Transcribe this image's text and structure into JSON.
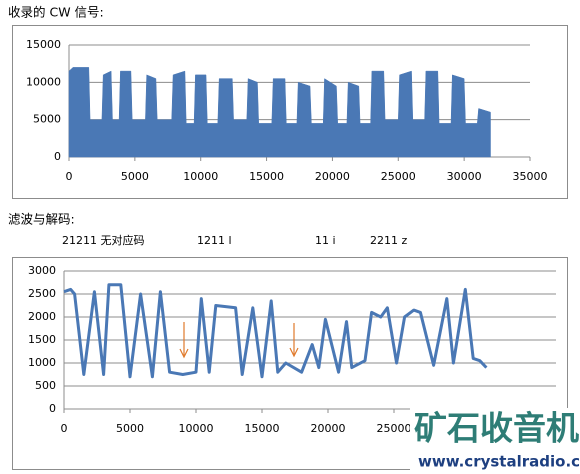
{
  "headings": [
    "收录的 CW 信号:",
    "滤波与解码:"
  ],
  "decode_labels": [
    "21211  无对应码",
    "1211 l",
    "11 i",
    "2211 z"
  ],
  "watermark": {
    "title": "矿石收音机",
    "url": "www.crystalradio.cn"
  },
  "chart_data": [
    {
      "type": "area",
      "color": "#4a78b5",
      "x": [
        0,
        300,
        1500,
        1600,
        2500,
        2600,
        3200,
        3300,
        3800,
        3900,
        4700,
        4800,
        5800,
        5900,
        6600,
        6700,
        7800,
        7900,
        8800,
        8900,
        9500,
        9600,
        10400,
        10500,
        11300,
        11400,
        12400,
        12500,
        13500,
        13600,
        14300,
        14400,
        15400,
        15500,
        16400,
        16500,
        17300,
        17400,
        18300,
        18400,
        19300,
        19400,
        20300,
        20400,
        21100,
        21200,
        22000,
        22100,
        22900,
        23000,
        23900,
        24000,
        25000,
        25100,
        26000,
        26100,
        27000,
        27100,
        28000,
        28100,
        29000,
        29100,
        30000,
        30100,
        31000,
        31100,
        32000
      ],
      "values": [
        11500,
        12000,
        12000,
        5000,
        5000,
        11000,
        11500,
        5000,
        5000,
        11500,
        11500,
        5000,
        5000,
        11000,
        10500,
        5000,
        5000,
        11000,
        11500,
        4500,
        4500,
        11000,
        11000,
        4500,
        4500,
        10500,
        10500,
        5000,
        5000,
        10500,
        10000,
        4500,
        4500,
        10500,
        10500,
        4500,
        4500,
        10000,
        9500,
        4500,
        4500,
        10500,
        9500,
        4500,
        4500,
        10000,
        9500,
        4500,
        4500,
        11500,
        11500,
        5000,
        5000,
        11000,
        11500,
        5000,
        5000,
        11500,
        11500,
        4500,
        4500,
        11000,
        10500,
        4500,
        4500,
        6500,
        6000
      ],
      "xlim": [
        0,
        35000
      ],
      "xticks": [
        0,
        5000,
        10000,
        15000,
        20000,
        25000,
        30000,
        35000
      ],
      "ylim": [
        0,
        15000
      ],
      "yticks": [
        0,
        5000,
        10000,
        15000
      ],
      "grid": true
    },
    {
      "type": "line",
      "color": "#4a78b5",
      "x": [
        0,
        500,
        800,
        1500,
        2300,
        3000,
        3400,
        4300,
        5000,
        5800,
        6700,
        7300,
        8000,
        9000,
        10000,
        10400,
        11000,
        11500,
        13000,
        13500,
        14300,
        15000,
        15700,
        16200,
        16800,
        18000,
        18800,
        19300,
        19800,
        20800,
        21400,
        21800,
        22800,
        23300,
        24000,
        24500,
        25200,
        25800,
        26500,
        27000,
        28000,
        29000,
        29500,
        30400,
        31000,
        31500,
        32000
      ],
      "values": [
        2550,
        2600,
        2500,
        750,
        2550,
        750,
        2700,
        2700,
        700,
        2500,
        700,
        2550,
        800,
        750,
        800,
        2400,
        800,
        2250,
        2200,
        750,
        2200,
        700,
        2350,
        800,
        1000,
        800,
        1400,
        900,
        1950,
        800,
        1900,
        900,
        1050,
        2100,
        2000,
        2200,
        1000,
        2000,
        2150,
        2100,
        950,
        2400,
        1000,
        2600,
        1100,
        1050,
        900
      ],
      "xlim": [
        0,
        35000
      ],
      "xticks": [
        0,
        5000,
        10000,
        15000,
        20000,
        25000
      ],
      "ylim": [
        0,
        3000
      ],
      "yticks": [
        0,
        500,
        1000,
        1500,
        2000,
        2500,
        3000
      ],
      "grid": true
    }
  ]
}
